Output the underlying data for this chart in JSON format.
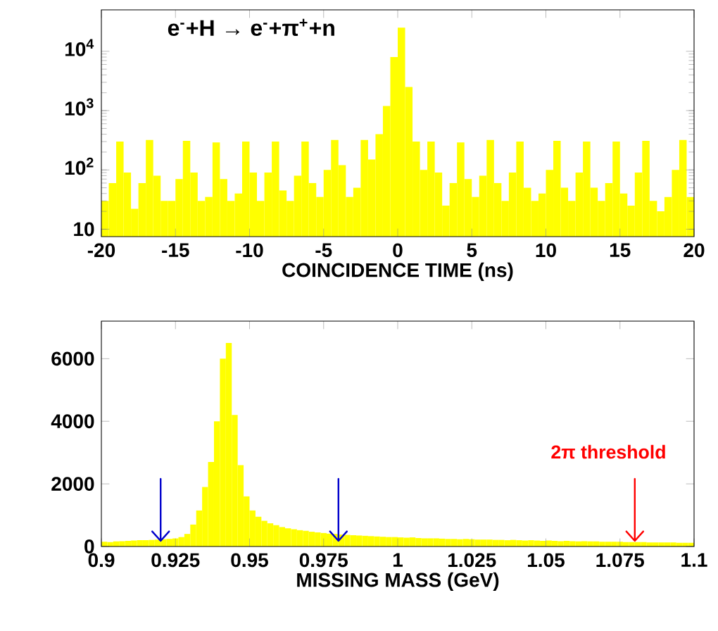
{
  "chart_data": [
    {
      "type": "histogram",
      "xlabel": "COINCIDENCE TIME (ns)",
      "annotations": [
        "e$^{-}$+H → e$^{-}$+π$^{+}$+n"
      ],
      "log": true,
      "color": "#ffff00",
      "bins": [
        -20,
        -19.5,
        -19,
        -18.5,
        -18,
        -17.5,
        -17,
        -16.5,
        -16,
        -15.5,
        -15,
        -14.5,
        -14,
        -13.5,
        -13,
        -12.5,
        -12,
        -11.5,
        -11,
        -10.5,
        -10,
        -9.5,
        -9,
        -8.5,
        -8,
        -7.5,
        -7,
        -6.5,
        -6,
        -5.5,
        -5,
        -4.5,
        -4,
        -3.5,
        -3,
        -2.5,
        -2,
        -1.5,
        -1,
        -0.5,
        0,
        0.5,
        1,
        1.5,
        2,
        2.5,
        3,
        3.5,
        4,
        4.5,
        5,
        5.5,
        6,
        6.5,
        7,
        7.5,
        8,
        8.5,
        9,
        9.5,
        10,
        10.5,
        11,
        11.5,
        12,
        12.5,
        13,
        13.5,
        14,
        14.5,
        15,
        15.5,
        16,
        16.5,
        17,
        17.5,
        18,
        18.5,
        19,
        19.5,
        20
      ],
      "values": [
        30,
        60,
        300,
        90,
        22,
        60,
        320,
        80,
        30,
        30,
        70,
        310,
        90,
        30,
        35,
        290,
        70,
        30,
        40,
        300,
        90,
        30,
        90,
        300,
        45,
        30,
        80,
        300,
        60,
        35,
        100,
        320,
        120,
        35,
        50,
        320,
        150,
        400,
        1200,
        8000,
        25000,
        2500,
        300,
        100,
        300,
        90,
        25,
        60,
        290,
        70,
        35,
        80,
        320,
        60,
        30,
        90,
        300,
        50,
        30,
        40,
        100,
        310,
        50,
        30,
        90,
        300,
        50,
        30,
        60,
        300,
        40,
        25,
        90,
        310,
        30,
        20,
        35,
        100,
        320,
        35
      ],
      "xlim": [
        -20,
        20
      ],
      "xticks": [
        -20,
        -15,
        -10,
        -5,
        0,
        5,
        10,
        15,
        20
      ],
      "ylim": [
        7.5,
        50000
      ],
      "yticks": [
        10,
        {
          "value": 100,
          "label": "10$^{2}$"
        },
        {
          "value": 1000,
          "label": "10$^{3}$"
        },
        {
          "value": 10000,
          "label": "10$^{4}$"
        }
      ]
    },
    {
      "type": "histogram",
      "xlabel": "MISSING MASS (GeV)",
      "color": "#ffff00",
      "bins": [
        0.9,
        0.902,
        0.904,
        0.906,
        0.908,
        0.91,
        0.912,
        0.914,
        0.916,
        0.918,
        0.92,
        0.922,
        0.924,
        0.926,
        0.928,
        0.93,
        0.932,
        0.934,
        0.936,
        0.938,
        0.94,
        0.942,
        0.944,
        0.946,
        0.948,
        0.95,
        0.952,
        0.954,
        0.956,
        0.958,
        0.96,
        0.962,
        0.964,
        0.966,
        0.968,
        0.97,
        0.972,
        0.974,
        0.976,
        0.978,
        0.98,
        0.982,
        0.984,
        0.986,
        0.988,
        0.99,
        0.992,
        0.994,
        0.996,
        0.998,
        1.0,
        1.002,
        1.004,
        1.006,
        1.008,
        1.01,
        1.012,
        1.014,
        1.016,
        1.018,
        1.02,
        1.022,
        1.024,
        1.026,
        1.028,
        1.03,
        1.032,
        1.034,
        1.036,
        1.038,
        1.04,
        1.042,
        1.044,
        1.046,
        1.048,
        1.05,
        1.052,
        1.054,
        1.056,
        1.058,
        1.06,
        1.062,
        1.064,
        1.066,
        1.068,
        1.07,
        1.072,
        1.074,
        1.076,
        1.078,
        1.08,
        1.082,
        1.084,
        1.086,
        1.088,
        1.09,
        1.092,
        1.094,
        1.096,
        1.098,
        1.1
      ],
      "values": [
        150,
        140,
        160,
        170,
        180,
        190,
        200,
        200,
        210,
        220,
        230,
        240,
        260,
        300,
        400,
        700,
        1150,
        1900,
        2700,
        4000,
        6000,
        6500,
        4200,
        2600,
        1600,
        1150,
        950,
        820,
        740,
        680,
        620,
        580,
        550,
        520,
        500,
        470,
        450,
        430,
        410,
        400,
        380,
        370,
        360,
        350,
        340,
        330,
        320,
        310,
        300,
        300,
        290,
        280,
        290,
        270,
        260,
        260,
        260,
        250,
        240,
        240,
        230,
        240,
        230,
        220,
        220,
        220,
        210,
        210,
        200,
        210,
        200,
        190,
        200,
        190,
        180,
        190,
        180,
        170,
        180,
        170,
        160,
        170,
        160,
        160,
        150,
        150,
        150,
        150,
        140,
        140,
        140,
        140,
        130,
        130,
        130,
        130,
        130,
        120,
        120,
        120
      ],
      "xlim": [
        0.9,
        1.1
      ],
      "xticks": [
        0.9,
        0.925,
        0.95,
        0.975,
        1,
        1.025,
        1.05,
        1.075,
        1.1
      ],
      "ylim": [
        0,
        7200
      ],
      "yticks": [
        0,
        2000,
        4000,
        6000
      ],
      "ref_lines": [
        {
          "axis": "x",
          "value": 0.92,
          "color": "#0000cc"
        },
        {
          "axis": "x",
          "value": 0.98,
          "color": "#0000cc"
        },
        {
          "axis": "x",
          "value": 1.08,
          "color": "#ff0000",
          "label": "2π threshold"
        }
      ]
    }
  ]
}
